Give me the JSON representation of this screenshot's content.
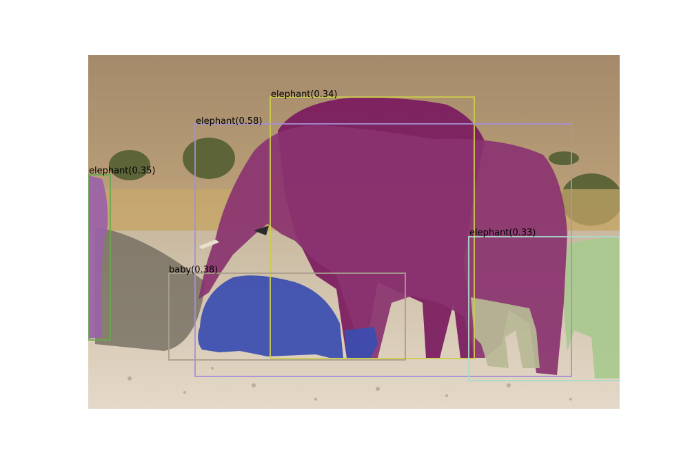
{
  "detections": [
    {
      "label": "elephant(0.34)",
      "color": "#cccc4d"
    },
    {
      "label": "elephant(0.58)",
      "color": "#a58fd6"
    },
    {
      "label": "elephant(0.35)",
      "color": "#6aa84f"
    },
    {
      "label": "elephant(0.33)",
      "color": "#a8dcc8"
    },
    {
      "label": "baby(0.38)",
      "color": "#a89f8a"
    }
  ],
  "mask_colors": {
    "main_elephant": "#8a3370",
    "rear_elephant": "#7a1a5e",
    "baby_elephant": "#3a4db0",
    "left_elephant": "#9a62a8",
    "right_elephant": "#a8c98e",
    "grey_elephant": "#b8b896"
  }
}
